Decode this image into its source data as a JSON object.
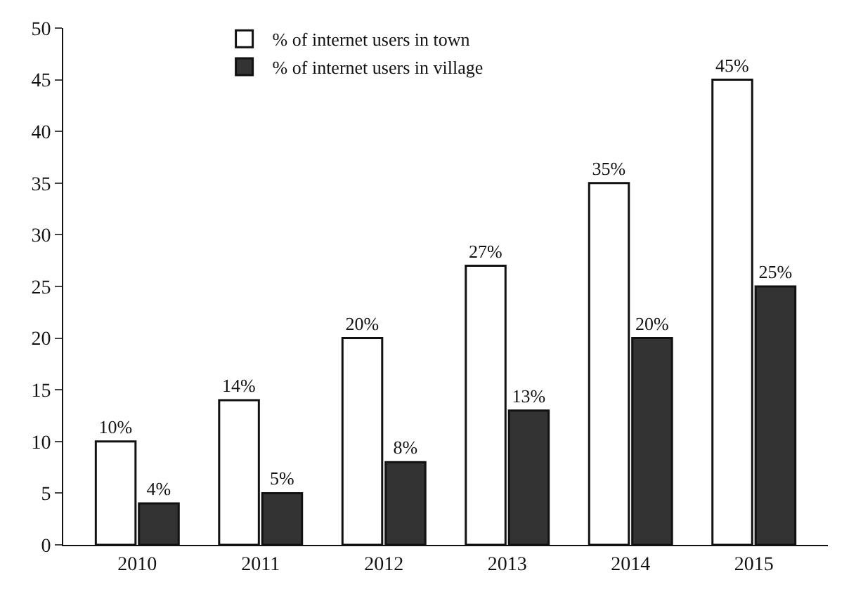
{
  "chart_data": {
    "type": "bar",
    "categories": [
      "2010",
      "2011",
      "2012",
      "2013",
      "2014",
      "2015"
    ],
    "series": [
      {
        "name": "% of internet users in town",
        "color": "#ffffff",
        "values": [
          10,
          14,
          20,
          27,
          35,
          45
        ],
        "value_labels": [
          "10%",
          "14%",
          "20%",
          "27%",
          "35%",
          "45%"
        ]
      },
      {
        "name": "% of internet users in village",
        "color": "#333333",
        "values": [
          4,
          5,
          8,
          13,
          20,
          25
        ],
        "value_labels": [
          "4%",
          "5%",
          "8%",
          "13%",
          "20%",
          "25%"
        ]
      }
    ],
    "ylim": [
      0,
      50
    ],
    "yticks": [
      0,
      5,
      10,
      15,
      20,
      25,
      30,
      35,
      40,
      45,
      50
    ],
    "grid": false,
    "legend": "top"
  }
}
